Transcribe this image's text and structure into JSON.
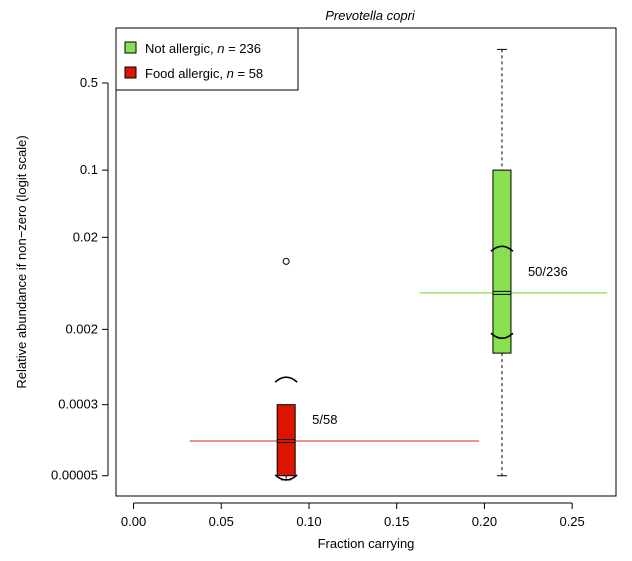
{
  "chart_data": {
    "type": "box",
    "title": "Prevotella copri",
    "xlabel": "Fraction carrying",
    "ylabel": "Relative abundance if non−zero (logit scale)",
    "x_scale": "linear",
    "y_scale": "logit",
    "xlim": [
      -0.01,
      0.275
    ],
    "ylim": [
      3e-05,
      0.8
    ],
    "x_ticks": [
      {
        "value": 0.0,
        "label": "0.00"
      },
      {
        "value": 0.05,
        "label": "0.05"
      },
      {
        "value": 0.1,
        "label": "0.10"
      },
      {
        "value": 0.15,
        "label": "0.15"
      },
      {
        "value": 0.2,
        "label": "0.20"
      },
      {
        "value": 0.25,
        "label": "0.25"
      }
    ],
    "y_ticks": [
      {
        "value": 5e-05,
        "label": "0.00005"
      },
      {
        "value": 0.0003,
        "label": "0.0003"
      },
      {
        "value": 0.002,
        "label": "0.002"
      },
      {
        "value": 0.02,
        "label": "0.02"
      },
      {
        "value": 0.1,
        "label": "0.1"
      },
      {
        "value": 0.5,
        "label": "0.5"
      }
    ],
    "legend": {
      "position": "top-left",
      "entries": [
        {
          "prefix": "Not allergic, ",
          "n_symbol": "n",
          "suffix": " = 236",
          "color": "#88e050"
        },
        {
          "prefix": "Food allergic, ",
          "n_symbol": "n",
          "suffix": " = 58",
          "color": "#dd1500"
        }
      ]
    },
    "series": [
      {
        "x": 0.21,
        "fraction_ci": [
          0.163,
          0.27
        ],
        "color": "#88e050",
        "line_color": "#88d855",
        "whisker_low": 5e-05,
        "q1": 0.0011,
        "median": 0.005,
        "q3": 0.1,
        "whisker_high": 0.7,
        "notch_low": 0.0016,
        "notch_high": 0.016,
        "outliers": [],
        "annotation": "50/236"
      },
      {
        "x": 0.087,
        "fraction_ci": [
          0.032,
          0.197
        ],
        "color": "#dd1500",
        "line_color": "#e05050",
        "whisker_low": 4.5e-05,
        "q1": 5e-05,
        "median": 0.00012,
        "q3": 0.0003,
        "whisker_high": 0.0003,
        "notch_low": 4.5e-05,
        "notch_high": 0.0006,
        "outliers": [
          0.011
        ],
        "annotation": "5/58"
      }
    ]
  }
}
